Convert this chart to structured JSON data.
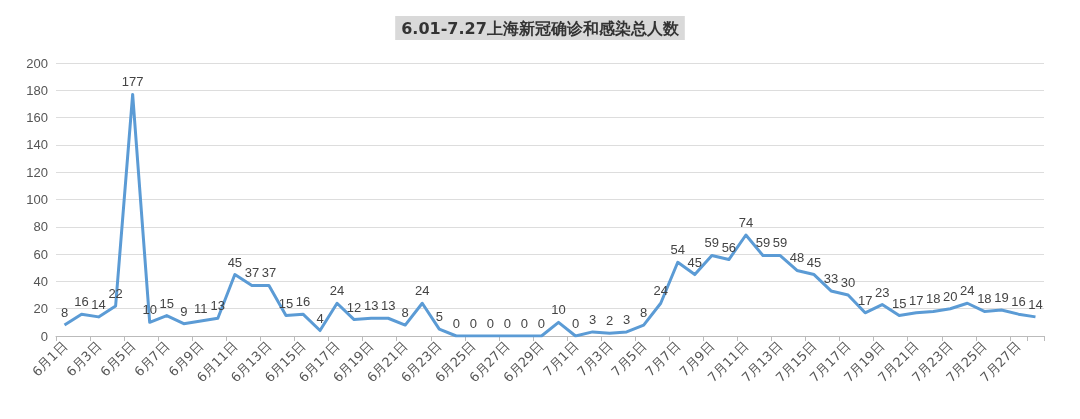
{
  "chart_data": {
    "type": "line",
    "title": "6.01-7.27上海新冠确诊和感染总人数",
    "categories": [
      "6月1日",
      null,
      "6月3日",
      null,
      "6月5日",
      null,
      "6月7日",
      null,
      "6月9日",
      null,
      "6月11日",
      null,
      "6月13日",
      null,
      "6月15日",
      null,
      "6月17日",
      null,
      "6月19日",
      null,
      "6月21日",
      null,
      "6月23日",
      null,
      "6月25日",
      null,
      "6月27日",
      null,
      "6月29日",
      null,
      "7月1日",
      null,
      "7月3日",
      null,
      "7月5日",
      null,
      "7月7日",
      null,
      "7月9日",
      null,
      "7月11日",
      null,
      "7月13日",
      null,
      "7月15日",
      null,
      "7月17日",
      null,
      "7月19日",
      null,
      "7月21日",
      null,
      "7月23日",
      null,
      "7月25日",
      null,
      "7月27日",
      null
    ],
    "series": [
      {
        "color": "#5b9bd5",
        "values": [
          8,
          16,
          14,
          22,
          177,
          10,
          15,
          9,
          11,
          13,
          45,
          37,
          37,
          15,
          16,
          4,
          24,
          12,
          13,
          13,
          8,
          24,
          5,
          0,
          0,
          0,
          0,
          0,
          0,
          10,
          0,
          3,
          2,
          3,
          8,
          24,
          54,
          45,
          59,
          56,
          74,
          59,
          59,
          48,
          45,
          33,
          30,
          17,
          23,
          15,
          17,
          18,
          20,
          24,
          18,
          19,
          16,
          14
        ]
      }
    ],
    "ylim": [
      0,
      200
    ],
    "yticks": [
      0,
      20,
      40,
      60,
      80,
      100,
      120,
      140,
      160,
      180,
      200
    ],
    "grid": "y",
    "data_labels": true,
    "marker": "none",
    "line_style": "solid"
  }
}
